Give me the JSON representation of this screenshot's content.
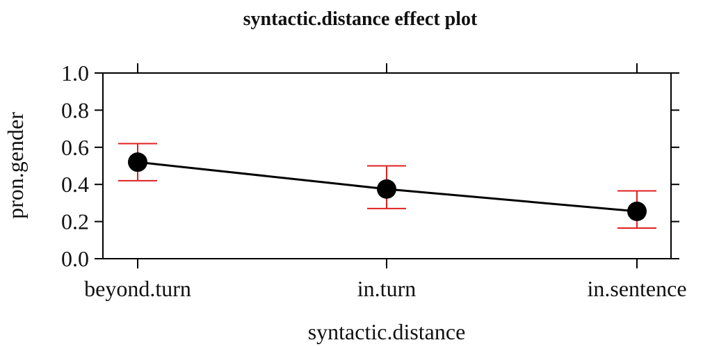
{
  "chart_data": {
    "type": "line",
    "title": "syntactic.distance effect plot",
    "xlabel": "syntactic.distance",
    "ylabel": "pron.gender",
    "categories": [
      "beyond.turn",
      "in.turn",
      "in.sentence"
    ],
    "values": [
      0.52,
      0.375,
      0.255
    ],
    "ci_lower": [
      0.42,
      0.27,
      0.165
    ],
    "ci_upper": [
      0.62,
      0.5,
      0.365
    ],
    "ylim": [
      0,
      1
    ],
    "yticks": [
      "0.0",
      "0.2",
      "0.4",
      "0.6",
      "0.8",
      "1.0"
    ],
    "grid": false,
    "colors": {
      "line": "#000000",
      "points": "#000000",
      "error_bars": "#e02020",
      "frame": "#000000"
    }
  }
}
